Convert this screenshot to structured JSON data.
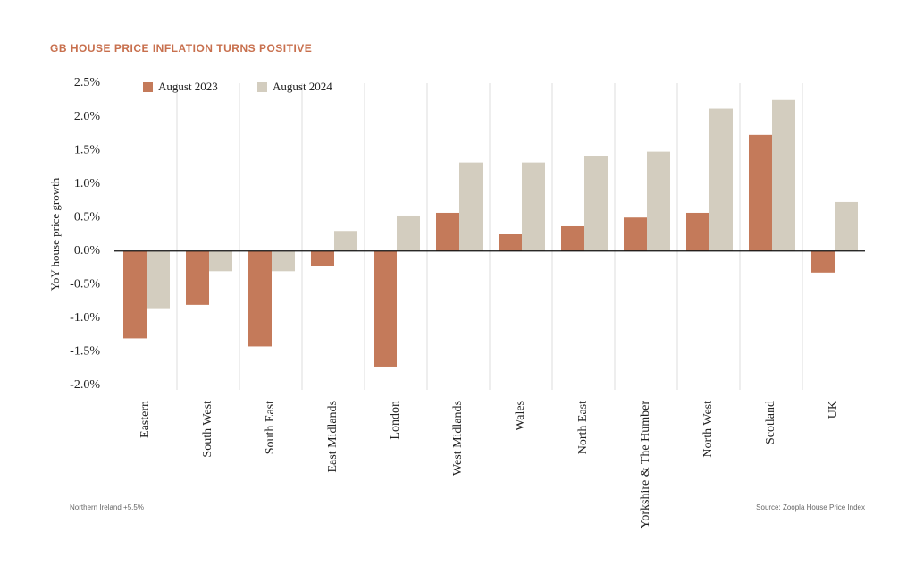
{
  "chart_data": {
    "type": "bar",
    "title": "GB HOUSE PRICE INFLATION TURNS POSITIVE",
    "y_label": "YoY house price growth",
    "categories": [
      "Eastern",
      "South West",
      "South East",
      "East Midlands",
      "London",
      "West Midlands",
      "Wales",
      "North East",
      "Yorkshire & The Humber",
      "North West",
      "Scotland",
      "UK"
    ],
    "series": [
      {
        "name": "August 2023",
        "color": "#c47a5a",
        "values": [
          -1.3,
          -0.8,
          -1.42,
          -0.22,
          -1.72,
          0.57,
          0.25,
          0.37,
          0.5,
          0.57,
          1.73,
          -0.32
        ]
      },
      {
        "name": "August 2024",
        "color": "#d3cdbf",
        "values": [
          -0.85,
          -0.3,
          -0.3,
          0.3,
          0.53,
          1.32,
          1.32,
          1.41,
          1.48,
          2.12,
          2.25,
          0.73
        ]
      }
    ],
    "ylim": [
      -2.0,
      2.5
    ],
    "yticks": [
      {
        "value": 2.5,
        "label": "2.5%"
      },
      {
        "value": 2.0,
        "label": "2.0%"
      },
      {
        "value": 1.5,
        "label": "1.5%"
      },
      {
        "value": 1.0,
        "label": "1.0%"
      },
      {
        "value": 0.5,
        "label": "0.5%"
      },
      {
        "value": 0.0,
        "label": "0.0%"
      },
      {
        "value": -0.5,
        "label": "-0.5%"
      },
      {
        "value": -1.0,
        "label": "-1.0%"
      },
      {
        "value": -1.5,
        "label": "-1.5%"
      },
      {
        "value": -2.0,
        "label": "-2.0%"
      }
    ],
    "footnote": "Northern Ireland +5.5%",
    "source": "Source: Zoopla House Price Index"
  }
}
